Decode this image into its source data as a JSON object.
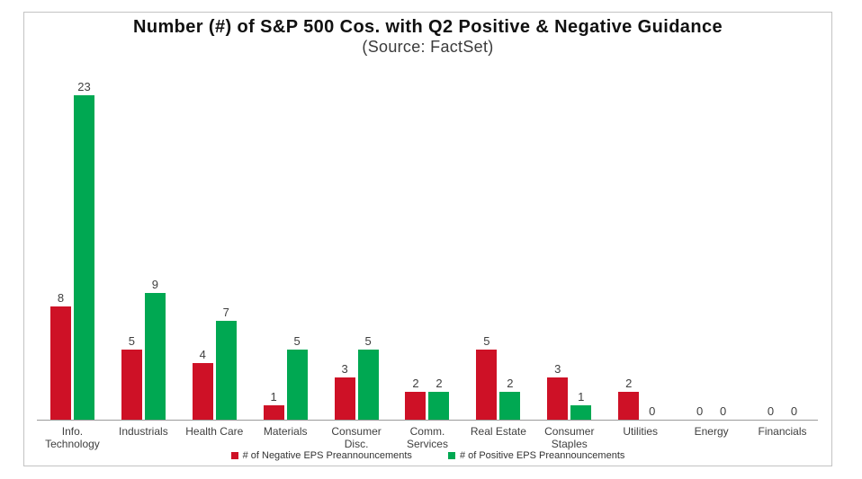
{
  "chart": {
    "title": "Number (#) of S&P 500 Cos. with Q2 Positive & Negative Guidance",
    "subtitle": "(Source: FactSet)"
  },
  "chart_data": {
    "type": "bar",
    "title": "Number (#) of S&P 500 Cos. with Q2 Positive & Negative Guidance",
    "subtitle": "(Source: FactSet)",
    "categories": [
      "Info. Technology",
      "Industrials",
      "Health Care",
      "Materials",
      "Consumer Disc.",
      "Comm. Services",
      "Real Estate",
      "Consumer Staples",
      "Utilities",
      "Energy",
      "Financials"
    ],
    "category_display": [
      "Info.\nTechnology",
      "Industrials",
      "Health Care",
      "Materials",
      "Consumer\nDisc.",
      "Comm.\nServices",
      "Real Estate",
      "Consumer\nStaples",
      "Utilities",
      "Energy",
      "Financials"
    ],
    "series": [
      {
        "name": "# of Negative EPS Preannouncements",
        "color": "#CE1126",
        "values": [
          8,
          5,
          4,
          1,
          3,
          2,
          5,
          3,
          2,
          0,
          0
        ]
      },
      {
        "name": "# of Positive EPS Preannouncements",
        "color": "#00A852",
        "values": [
          23,
          9,
          7,
          5,
          5,
          2,
          2,
          1,
          0,
          0,
          0
        ]
      }
    ],
    "ylim": [
      0,
      24
    ],
    "y_axis_visible": false,
    "grid": false,
    "data_labels": true,
    "legend_position": "bottom"
  },
  "colors": {
    "negative": "#CE1126",
    "positive": "#00A852",
    "frame_border": "#c3c3c3",
    "axis_line": "#9b9b9b",
    "text": "#3f3f3f"
  }
}
